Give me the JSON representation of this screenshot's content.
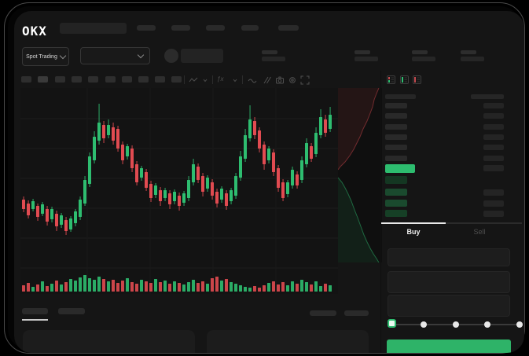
{
  "brand": {
    "logo_text": "OKX"
  },
  "topbar": {
    "market_selector_label": "Spot Trading"
  },
  "toolbar": {
    "fx_label": "ƒx"
  },
  "chart_data": {
    "type": "candlestick",
    "title": "",
    "xlabel": "",
    "ylabel": "",
    "axes_visible": false,
    "grid": "faint",
    "colors": {
      "up": "#2ebd70",
      "down": "#e14b51"
    },
    "candles": [
      [
        250,
        262,
        246,
        266,
        "d"
      ],
      [
        255,
        270,
        251,
        274,
        "d"
      ],
      [
        252,
        262,
        249,
        265,
        "u"
      ],
      [
        258,
        272,
        255,
        277,
        "d"
      ],
      [
        256,
        268,
        253,
        271,
        "u"
      ],
      [
        262,
        278,
        258,
        283,
        "d"
      ],
      [
        262,
        275,
        259,
        279,
        "u"
      ],
      [
        268,
        284,
        264,
        290,
        "d"
      ],
      [
        270,
        282,
        267,
        286,
        "u"
      ],
      [
        276,
        290,
        272,
        295,
        "d"
      ],
      [
        274,
        288,
        271,
        291,
        "u"
      ],
      [
        265,
        280,
        262,
        284,
        "u"
      ],
      [
        250,
        272,
        246,
        276,
        "u"
      ],
      [
        225,
        255,
        220,
        258,
        "u"
      ],
      [
        195,
        230,
        190,
        234,
        "u"
      ],
      [
        170,
        200,
        163,
        204,
        "u"
      ],
      [
        152,
        175,
        128,
        180,
        "u"
      ],
      [
        155,
        172,
        150,
        178,
        "d"
      ],
      [
        155,
        168,
        148,
        172,
        "u"
      ],
      [
        158,
        175,
        152,
        180,
        "d"
      ],
      [
        160,
        185,
        156,
        189,
        "d"
      ],
      [
        180,
        200,
        176,
        205,
        "d"
      ],
      [
        182,
        195,
        179,
        199,
        "u"
      ],
      [
        185,
        210,
        181,
        215,
        "d"
      ],
      [
        205,
        228,
        201,
        232,
        "d"
      ],
      [
        210,
        222,
        207,
        226,
        "u"
      ],
      [
        215,
        235,
        211,
        239,
        "d"
      ],
      [
        230,
        248,
        226,
        253,
        "d"
      ],
      [
        232,
        244,
        229,
        248,
        "u"
      ],
      [
        238,
        252,
        234,
        258,
        "d"
      ],
      [
        238,
        248,
        235,
        252,
        "u"
      ],
      [
        242,
        256,
        238,
        262,
        "d"
      ],
      [
        240,
        252,
        237,
        256,
        "u"
      ],
      [
        245,
        258,
        241,
        264,
        "d"
      ],
      [
        242,
        254,
        239,
        258,
        "u"
      ],
      [
        225,
        248,
        220,
        252,
        "u"
      ],
      [
        205,
        228,
        198,
        232,
        "u"
      ],
      [
        208,
        225,
        204,
        229,
        "d"
      ],
      [
        220,
        240,
        216,
        246,
        "d"
      ],
      [
        222,
        236,
        219,
        240,
        "u"
      ],
      [
        228,
        245,
        224,
        250,
        "d"
      ],
      [
        240,
        255,
        236,
        260,
        "d"
      ],
      [
        236,
        250,
        233,
        254,
        "u"
      ],
      [
        242,
        258,
        238,
        263,
        "d"
      ],
      [
        238,
        252,
        235,
        256,
        "u"
      ],
      [
        220,
        245,
        216,
        249,
        "u"
      ],
      [
        195,
        222,
        188,
        226,
        "u"
      ],
      [
        168,
        198,
        160,
        202,
        "u"
      ],
      [
        148,
        172,
        130,
        176,
        "u"
      ],
      [
        150,
        168,
        145,
        173,
        "d"
      ],
      [
        162,
        185,
        158,
        190,
        "d"
      ],
      [
        180,
        205,
        176,
        212,
        "d"
      ],
      [
        185,
        200,
        182,
        204,
        "u"
      ],
      [
        190,
        215,
        186,
        220,
        "d"
      ],
      [
        210,
        235,
        206,
        240,
        "d"
      ],
      [
        228,
        248,
        224,
        252,
        "d"
      ],
      [
        228,
        243,
        225,
        247,
        "u"
      ],
      [
        212,
        232,
        208,
        236,
        "u"
      ],
      [
        218,
        232,
        214,
        236,
        "d"
      ],
      [
        200,
        225,
        195,
        229,
        "u"
      ],
      [
        178,
        205,
        172,
        209,
        "u"
      ],
      [
        182,
        198,
        178,
        202,
        "d"
      ],
      [
        165,
        192,
        158,
        196,
        "u"
      ],
      [
        145,
        168,
        135,
        172,
        "u"
      ],
      [
        148,
        165,
        142,
        170,
        "d"
      ],
      [
        142,
        160,
        132,
        164,
        "u"
      ]
    ],
    "volume": [
      8,
      11,
      6,
      9,
      13,
      7,
      10,
      14,
      9,
      12,
      16,
      14,
      18,
      21,
      17,
      15,
      19,
      16,
      13,
      15,
      11,
      14,
      17,
      12,
      10,
      15,
      13,
      11,
      16,
      12,
      14,
      10,
      13,
      11,
      9,
      12,
      15,
      11,
      13,
      10,
      17,
      19,
      14,
      16,
      12,
      10,
      8,
      6,
      5,
      7,
      5,
      8,
      11,
      13,
      9,
      12,
      8,
      13,
      10,
      15,
      12,
      9,
      13,
      7,
      10,
      8
    ],
    "depth": {
      "asks_curve": [
        [
          52,
          0
        ],
        [
          49,
          7
        ],
        [
          46,
          15
        ],
        [
          44,
          24
        ],
        [
          41,
          32
        ],
        [
          37,
          42
        ],
        [
          32,
          52
        ],
        [
          28,
          62
        ],
        [
          24,
          70
        ],
        [
          20,
          78
        ],
        [
          15,
          86
        ],
        [
          9,
          94
        ],
        [
          3,
          100
        ],
        [
          0,
          104
        ]
      ],
      "bids_curve": [
        [
          0,
          114
        ],
        [
          5,
          120
        ],
        [
          9,
          127
        ],
        [
          13,
          135
        ],
        [
          17,
          144
        ],
        [
          21,
          155
        ],
        [
          25,
          165
        ],
        [
          29,
          176
        ],
        [
          33,
          187
        ],
        [
          37,
          196
        ],
        [
          41,
          204
        ],
        [
          45,
          211
        ],
        [
          49,
          217
        ],
        [
          52,
          222
        ]
      ]
    }
  },
  "orderbook": {
    "last_price_color": "#2dbd6f",
    "view_icons": [
      "book-both-sides",
      "book-bids-only",
      "book-asks-only"
    ]
  },
  "trade_panel": {
    "buy_tab_label": "Buy",
    "sell_tab_label": "Sell",
    "slider_steps": 5,
    "submit_button_color": "#2eb368"
  }
}
